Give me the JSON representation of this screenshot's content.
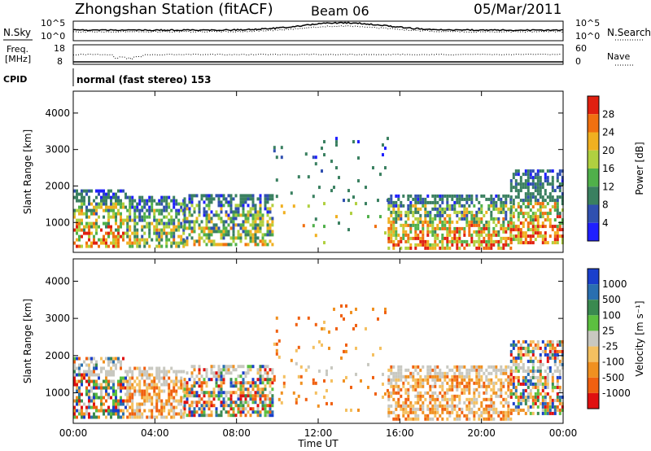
{
  "header": {
    "station": "Zhongshan Station (fitACF)",
    "beam": "Beam 06",
    "date": "05/Mar/2011"
  },
  "summary_panels": {
    "nsky_label": "N.Sky",
    "nsearch_label": "N.Search",
    "freq_label_1": "Freq.",
    "freq_label_2": "[MHz]",
    "nave_label": "Nave",
    "cpid_label": "CPID",
    "cpid_text": "normal (fast stereo) 153",
    "left_top_tick": "10^5",
    "left_bottom_tick": "10^0",
    "right_top_tick": "10^5",
    "right_bottom_tick": "10^0",
    "freq_top_tick": "18",
    "freq_bottom_tick": "8",
    "nave_top_tick": "60",
    "nave_bottom_tick": "0"
  },
  "chart_data": [
    {
      "type": "heatmap",
      "quantity": "Power",
      "ylabel": "Slant Range [km]",
      "xlabel": "Time UT",
      "x_ticks": [
        "00:00",
        "04:00",
        "08:00",
        "12:00",
        "16:00",
        "20:00",
        "00:00"
      ],
      "y_ticks": [
        "1000",
        "2000",
        "3000",
        "4000"
      ],
      "xlim_hours": [
        0,
        24
      ],
      "ylim_km": [
        180,
        4600
      ],
      "colorbar": {
        "label": "Power [dB]",
        "ticks": [
          "4",
          "8",
          "12",
          "16",
          "20",
          "24",
          "28"
        ],
        "colors": [
          "#1f1fff",
          "#3050b0",
          "#3a8060",
          "#50b04a",
          "#b0d040",
          "#f0b020",
          "#f07010",
          "#e02010"
        ]
      },
      "regions": [
        {
          "t": [
            0.0,
            2.6
          ],
          "r": [
            300,
            1900
          ],
          "level": "high"
        },
        {
          "t": [
            2.6,
            5.4
          ],
          "r": [
            300,
            1650
          ],
          "level": "mid"
        },
        {
          "t": [
            5.4,
            9.8
          ],
          "r": [
            350,
            1700
          ],
          "level": "mid"
        },
        {
          "t": [
            9.8,
            12.0
          ],
          "r": [
            600,
            3100
          ],
          "level": "sparse"
        },
        {
          "t": [
            12.0,
            15.4
          ],
          "r": [
            400,
            3300
          ],
          "level": "sparse"
        },
        {
          "t": [
            15.4,
            21.4
          ],
          "r": [
            250,
            1700
          ],
          "level": "high"
        },
        {
          "t": [
            21.4,
            24.0
          ],
          "r": [
            400,
            2400
          ],
          "level": "high"
        }
      ]
    },
    {
      "type": "heatmap",
      "quantity": "Velocity",
      "ylabel": "Slant Range [km]",
      "xlabel": "Time UT",
      "x_ticks": [
        "00:00",
        "04:00",
        "08:00",
        "12:00",
        "16:00",
        "20:00",
        "00:00"
      ],
      "y_ticks": [
        "1000",
        "2000",
        "3000",
        "4000"
      ],
      "xlim_hours": [
        0,
        24
      ],
      "ylim_km": [
        180,
        4600
      ],
      "colorbar": {
        "label": "Velocity [m s⁻¹]",
        "ticks": [
          "1000",
          "500",
          "100",
          "25",
          "-25",
          "-100",
          "-500",
          "-1000"
        ],
        "colors": [
          "#1a3fcc",
          "#2a6fb0",
          "#3a8a50",
          "#5cc040",
          "#c8c8c0",
          "#f4c060",
          "#f09020",
          "#f06010",
          "#e01010"
        ]
      },
      "regions": [
        {
          "t": [
            0.0,
            2.6
          ],
          "r": [
            300,
            1900
          ],
          "level": "mixed"
        },
        {
          "t": [
            2.6,
            5.4
          ],
          "r": [
            300,
            1650
          ],
          "level": "negative"
        },
        {
          "t": [
            5.4,
            9.8
          ],
          "r": [
            350,
            1700
          ],
          "level": "mixed"
        },
        {
          "t": [
            9.8,
            12.0
          ],
          "r": [
            600,
            3100
          ],
          "level": "sparse"
        },
        {
          "t": [
            12.0,
            15.4
          ],
          "r": [
            400,
            3300
          ],
          "level": "sparse"
        },
        {
          "t": [
            15.4,
            21.4
          ],
          "r": [
            250,
            1700
          ],
          "level": "negative"
        },
        {
          "t": [
            21.4,
            24.0
          ],
          "r": [
            400,
            2400
          ],
          "level": "mixed"
        }
      ]
    }
  ]
}
